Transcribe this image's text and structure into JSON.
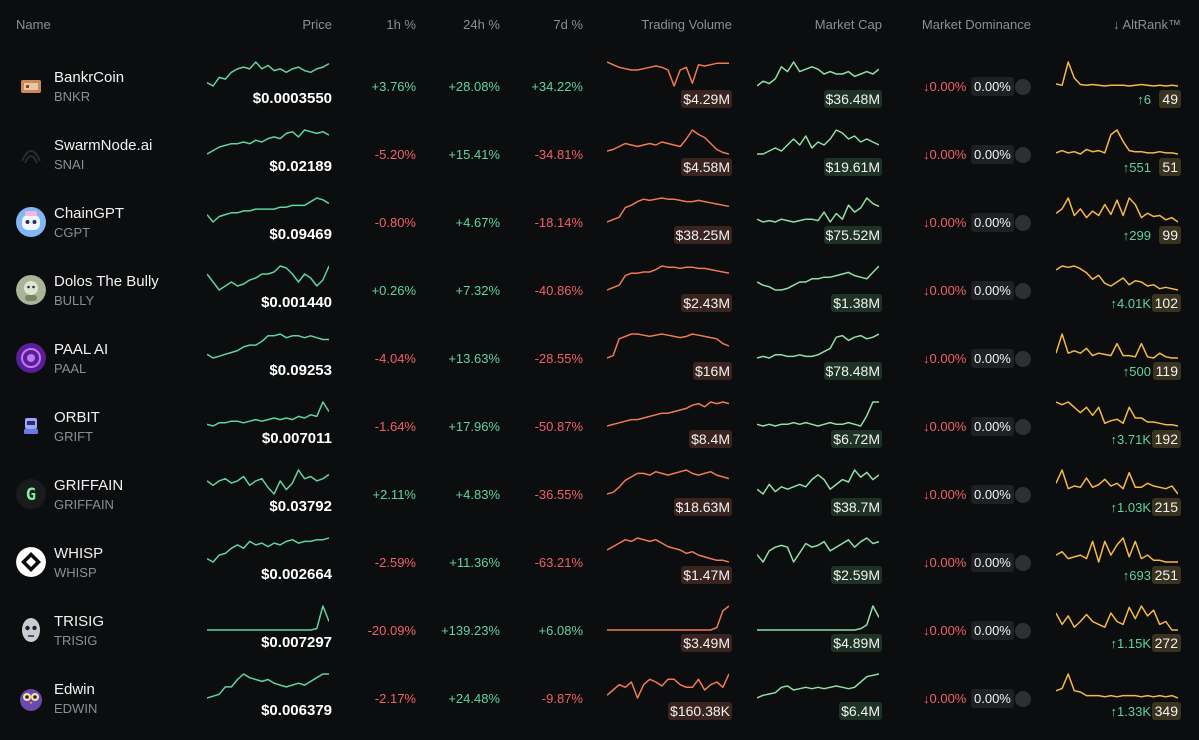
{
  "header": {
    "name": "Name",
    "price": "Price",
    "h1": "1h %",
    "h24": "24h %",
    "d7": "7d %",
    "volume": "Trading Volume",
    "market_cap": "Market Cap",
    "dominance": "Market Dominance",
    "altrank": "↓ AltRank™"
  },
  "colors": {
    "background": "#0c0d0e",
    "positive": "#5fd49e",
    "negative": "#f0606a",
    "price_spark": "#5fd49e",
    "volume_spark": "#f07a52",
    "cap_spark": "#8ee0a4",
    "rank_spark": "#f5b84a"
  },
  "rows": [
    {
      "name": "BankrCoin",
      "symbol": "BNKR",
      "logo": "bankr-logo",
      "price": "$0.0003550",
      "h1": "+3.76%",
      "h24": "+28.08%",
      "d7": "+34.22%",
      "volume": "$4.29M",
      "market_cap": "$36.48M",
      "dom_change": "↓0.00%",
      "dominance": "0.00%",
      "rank_change": "↑6",
      "rank": "49",
      "spark_price": [
        22,
        20,
        25,
        24,
        28,
        30,
        31,
        30,
        34,
        30,
        32,
        29,
        30,
        28,
        30,
        31,
        29,
        28,
        30,
        31,
        33
      ],
      "spark_volume": [
        30,
        28,
        26,
        25,
        24,
        24,
        25,
        26,
        27,
        26,
        24,
        12,
        24,
        26,
        14,
        28,
        27,
        28,
        29,
        29,
        29
      ],
      "spark_cap": [
        20,
        22,
        21,
        23,
        28,
        26,
        30,
        26,
        27,
        28,
        27,
        25,
        26,
        25,
        25,
        26,
        24,
        25,
        26,
        25,
        27
      ],
      "spark_rank": [
        10,
        8,
        40,
        18,
        9,
        8,
        9,
        8,
        7,
        8,
        8,
        8,
        7,
        8,
        9,
        8,
        7,
        8,
        7,
        8,
        7
      ]
    },
    {
      "name": "SwarmNode.ai",
      "symbol": "SNAI",
      "logo": "swarmnode-logo",
      "price": "$0.02189",
      "h1": "-5.20%",
      "h24": "+15.41%",
      "d7": "-34.81%",
      "volume": "$4.58M",
      "market_cap": "$19.61M",
      "dom_change": "↓0.00%",
      "dominance": "0.00%",
      "rank_change": "↑551",
      "rank": "51",
      "spark_price": [
        18,
        20,
        22,
        23,
        24,
        24,
        25,
        24,
        26,
        25,
        27,
        28,
        27,
        30,
        31,
        28,
        32,
        31,
        30,
        31,
        29
      ],
      "spark_volume": [
        22,
        23,
        25,
        27,
        26,
        25,
        26,
        27,
        26,
        28,
        27,
        26,
        25,
        30,
        36,
        33,
        31,
        27,
        23,
        21,
        20
      ],
      "spark_cap": [
        30,
        30,
        31,
        32,
        31,
        33,
        35,
        33,
        36,
        32,
        34,
        33,
        35,
        38,
        37,
        35,
        36,
        34,
        35,
        34,
        33
      ],
      "spark_rank": [
        12,
        14,
        12,
        13,
        11,
        15,
        13,
        14,
        12,
        28,
        32,
        22,
        14,
        13,
        13,
        12,
        12,
        13,
        12,
        12,
        11
      ]
    },
    {
      "name": "ChainGPT",
      "symbol": "CGPT",
      "logo": "chaingpt-logo",
      "price": "$0.09469",
      "h1": "-0.80%",
      "h24": "+4.67%",
      "d7": "-18.14%",
      "volume": "$38.25M",
      "market_cap": "$75.52M",
      "dom_change": "↓0.00%",
      "dominance": "0.00%",
      "rank_change": "↑299",
      "rank": "99",
      "spark_price": [
        22,
        18,
        21,
        22,
        23,
        23,
        24,
        24,
        25,
        25,
        25,
        25,
        26,
        26,
        27,
        27,
        27,
        29,
        31,
        30,
        28
      ],
      "spark_volume": [
        14,
        16,
        18,
        26,
        28,
        31,
        33,
        32,
        33,
        34,
        33,
        33,
        32,
        31,
        31,
        32,
        31,
        30,
        29,
        28,
        27
      ],
      "spark_cap": [
        20,
        18,
        19,
        18,
        20,
        19,
        18,
        19,
        20,
        20,
        19,
        25,
        18,
        24,
        20,
        30,
        25,
        28,
        35,
        31,
        29
      ],
      "spark_rank": [
        18,
        22,
        32,
        16,
        22,
        14,
        20,
        16,
        26,
        17,
        30,
        16,
        32,
        26,
        14,
        18,
        15,
        16,
        12,
        14,
        10
      ]
    },
    {
      "name": "Dolos The Bully",
      "symbol": "BULLY",
      "logo": "dolos-logo",
      "price": "$0.001440",
      "h1": "+0.26%",
      "h24": "+7.32%",
      "d7": "-40.86%",
      "volume": "$2.43M",
      "market_cap": "$1.38M",
      "dom_change": "↓0.00%",
      "dominance": "0.00%",
      "rank_change": "↑4.01K",
      "rank": "102",
      "spark_price": [
        30,
        26,
        22,
        24,
        26,
        24,
        25,
        27,
        28,
        30,
        30,
        31,
        34,
        33,
        30,
        26,
        30,
        28,
        24,
        27,
        34
      ],
      "spark_volume": [
        14,
        16,
        18,
        26,
        28,
        28,
        29,
        29,
        31,
        34,
        33,
        33,
        32,
        33,
        33,
        32,
        32,
        31,
        30,
        29,
        28
      ],
      "spark_cap": [
        26,
        24,
        23,
        21,
        21,
        22,
        24,
        26,
        26,
        28,
        28,
        29,
        29,
        30,
        31,
        32,
        30,
        29,
        28,
        32,
        36
      ],
      "spark_rank": [
        32,
        35,
        34,
        35,
        33,
        30,
        25,
        28,
        22,
        20,
        23,
        26,
        21,
        24,
        23,
        20,
        21,
        18,
        19,
        18,
        17
      ]
    },
    {
      "name": "PAAL AI",
      "symbol": "PAAL",
      "logo": "paal-logo",
      "price": "$0.09253",
      "h1": "-4.04%",
      "h24": "+13.63%",
      "d7": "-28.55%",
      "volume": "$16M",
      "market_cap": "$78.48M",
      "dom_change": "↓0.00%",
      "dominance": "0.00%",
      "rank_change": "↑500",
      "rank": "119",
      "spark_price": [
        20,
        18,
        19,
        20,
        21,
        22,
        24,
        25,
        25,
        27,
        30,
        30,
        31,
        29,
        30,
        30,
        29,
        30,
        29,
        28,
        28
      ],
      "spark_volume": [
        12,
        14,
        28,
        30,
        32,
        32,
        31,
        30,
        31,
        32,
        31,
        30,
        29,
        30,
        32,
        31,
        30,
        29,
        28,
        24,
        22
      ],
      "spark_cap": [
        20,
        21,
        20,
        22,
        22,
        21,
        21,
        22,
        21,
        21,
        22,
        24,
        26,
        33,
        34,
        31,
        33,
        34,
        32,
        33,
        35
      ],
      "spark_rank": [
        20,
        36,
        20,
        22,
        20,
        24,
        18,
        20,
        19,
        18,
        28,
        18,
        18,
        17,
        28,
        17,
        16,
        20,
        17,
        16,
        16
      ]
    },
    {
      "name": "ORBIT",
      "symbol": "GRIFT",
      "logo": "orbit-logo",
      "price": "$0.007011",
      "h1": "-1.64%",
      "h24": "+17.96%",
      "d7": "-50.87%",
      "volume": "$8.4M",
      "market_cap": "$6.72M",
      "dom_change": "↓0.00%",
      "dominance": "0.00%",
      "rank_change": "↑3.71K",
      "rank": "192",
      "spark_price": [
        20,
        19,
        21,
        21,
        22,
        22,
        21,
        22,
        23,
        22,
        23,
        24,
        23,
        24,
        23,
        25,
        24,
        26,
        25,
        34,
        28
      ],
      "spark_volume": [
        16,
        17,
        18,
        19,
        20,
        20,
        21,
        22,
        23,
        24,
        24,
        25,
        26,
        27,
        29,
        30,
        28,
        31,
        30,
        31,
        30
      ],
      "spark_cap": [
        20,
        19,
        20,
        19,
        20,
        20,
        21,
        20,
        21,
        20,
        19,
        20,
        21,
        20,
        20,
        21,
        20,
        19,
        25,
        33,
        33
      ],
      "spark_rank": [
        34,
        32,
        34,
        30,
        26,
        30,
        24,
        30,
        18,
        20,
        21,
        18,
        30,
        22,
        22,
        19,
        19,
        18,
        17,
        17,
        16
      ]
    },
    {
      "name": "GRIFFAIN",
      "symbol": "GRIFFAIN",
      "logo": "griffain-logo",
      "price": "$0.03792",
      "h1": "+2.11%",
      "h24": "+4.83%",
      "d7": "-36.55%",
      "volume": "$18.63M",
      "market_cap": "$38.7M",
      "dom_change": "↓0.00%",
      "dominance": "0.00%",
      "rank_change": "↑1.03K",
      "rank": "215",
      "spark_price": [
        30,
        28,
        30,
        31,
        29,
        30,
        32,
        28,
        30,
        31,
        27,
        24,
        30,
        26,
        29,
        35,
        31,
        32,
        30,
        31,
        33
      ],
      "spark_volume": [
        18,
        19,
        22,
        26,
        28,
        30,
        30,
        29,
        31,
        30,
        29,
        30,
        31,
        32,
        30,
        29,
        30,
        31,
        29,
        28,
        27
      ],
      "spark_cap": [
        22,
        20,
        24,
        21,
        23,
        22,
        23,
        24,
        23,
        26,
        28,
        26,
        22,
        24,
        26,
        25,
        30,
        27,
        29,
        26,
        28
      ],
      "spark_rank": [
        22,
        32,
        18,
        20,
        19,
        26,
        19,
        21,
        25,
        20,
        22,
        18,
        30,
        19,
        19,
        22,
        20,
        19,
        18,
        20,
        14
      ]
    },
    {
      "name": "WHISP",
      "symbol": "WHISP",
      "logo": "whisp-logo",
      "price": "$0.002664",
      "h1": "-2.59%",
      "h24": "+11.36%",
      "d7": "-63.21%",
      "volume": "$1.47M",
      "market_cap": "$2.59M",
      "dom_change": "↓0.00%",
      "dominance": "0.00%",
      "rank_change": "↑693",
      "rank": "251",
      "spark_price": [
        24,
        22,
        26,
        27,
        30,
        32,
        30,
        34,
        32,
        33,
        31,
        33,
        32,
        34,
        35,
        33,
        34,
        34,
        35,
        35,
        36
      ],
      "spark_volume": [
        26,
        28,
        30,
        32,
        31,
        33,
        32,
        31,
        32,
        30,
        28,
        27,
        26,
        24,
        25,
        23,
        22,
        21,
        20,
        20,
        19
      ],
      "spark_cap": [
        26,
        22,
        28,
        30,
        31,
        30,
        22,
        27,
        32,
        30,
        31,
        33,
        28,
        30,
        32,
        34,
        30,
        33,
        35,
        32,
        33
      ],
      "spark_rank": [
        22,
        24,
        20,
        21,
        22,
        20,
        30,
        18,
        30,
        22,
        28,
        32,
        21,
        30,
        20,
        22,
        19,
        19,
        18,
        18,
        18
      ]
    },
    {
      "name": "TRISIG",
      "symbol": "TRISIG",
      "logo": "trisig-logo",
      "price": "$0.007297",
      "h1": "-20.09%",
      "h24": "+139.23%",
      "d7": "+6.08%",
      "volume": "$3.49M",
      "market_cap": "$4.89M",
      "dom_change": "↓0.00%",
      "dominance": "0.00%",
      "rank_change": "↑1.15K",
      "rank": "272",
      "spark_price": [
        16,
        16,
        16,
        16,
        16,
        16,
        16,
        16,
        16,
        16,
        16,
        16,
        16,
        16,
        16,
        16,
        16,
        16,
        17,
        33,
        22
      ],
      "spark_volume": [
        14,
        14,
        14,
        14,
        14,
        14,
        14,
        14,
        14,
        14,
        14,
        14,
        14,
        14,
        14,
        14,
        14,
        14,
        16,
        30,
        34
      ],
      "spark_cap": [
        14,
        14,
        14,
        14,
        14,
        14,
        14,
        14,
        14,
        14,
        14,
        14,
        14,
        14,
        14,
        14,
        14,
        15,
        18,
        33,
        24
      ],
      "spark_rank": [
        28,
        20,
        26,
        18,
        22,
        27,
        22,
        20,
        18,
        28,
        22,
        20,
        32,
        24,
        33,
        26,
        30,
        20,
        22,
        16,
        16
      ]
    },
    {
      "name": "Edwin",
      "symbol": "EDWIN",
      "logo": "edwin-logo",
      "price": "$0.006379",
      "h1": "-2.17%",
      "h24": "+24.48%",
      "d7": "-9.87%",
      "volume": "$160.38K",
      "market_cap": "$6.4M",
      "dom_change": "↓0.00%",
      "dominance": "0.00%",
      "rank_change": "↑1.33K",
      "rank": "349",
      "spark_price": [
        20,
        21,
        22,
        26,
        26,
        30,
        33,
        31,
        30,
        29,
        30,
        28,
        27,
        26,
        27,
        28,
        27,
        29,
        31,
        33,
        33
      ],
      "spark_volume": [
        18,
        22,
        26,
        24,
        28,
        16,
        26,
        30,
        28,
        25,
        30,
        30,
        26,
        24,
        24,
        30,
        22,
        26,
        28,
        24,
        34
      ],
      "spark_cap": [
        16,
        18,
        19,
        20,
        24,
        25,
        22,
        23,
        24,
        23,
        24,
        23,
        24,
        25,
        24,
        23,
        24,
        28,
        32,
        33,
        34
      ],
      "spark_rank": [
        26,
        28,
        40,
        26,
        25,
        22,
        22,
        22,
        21,
        22,
        21,
        22,
        22,
        22,
        21,
        22,
        21,
        22,
        21,
        22,
        20
      ]
    }
  ]
}
